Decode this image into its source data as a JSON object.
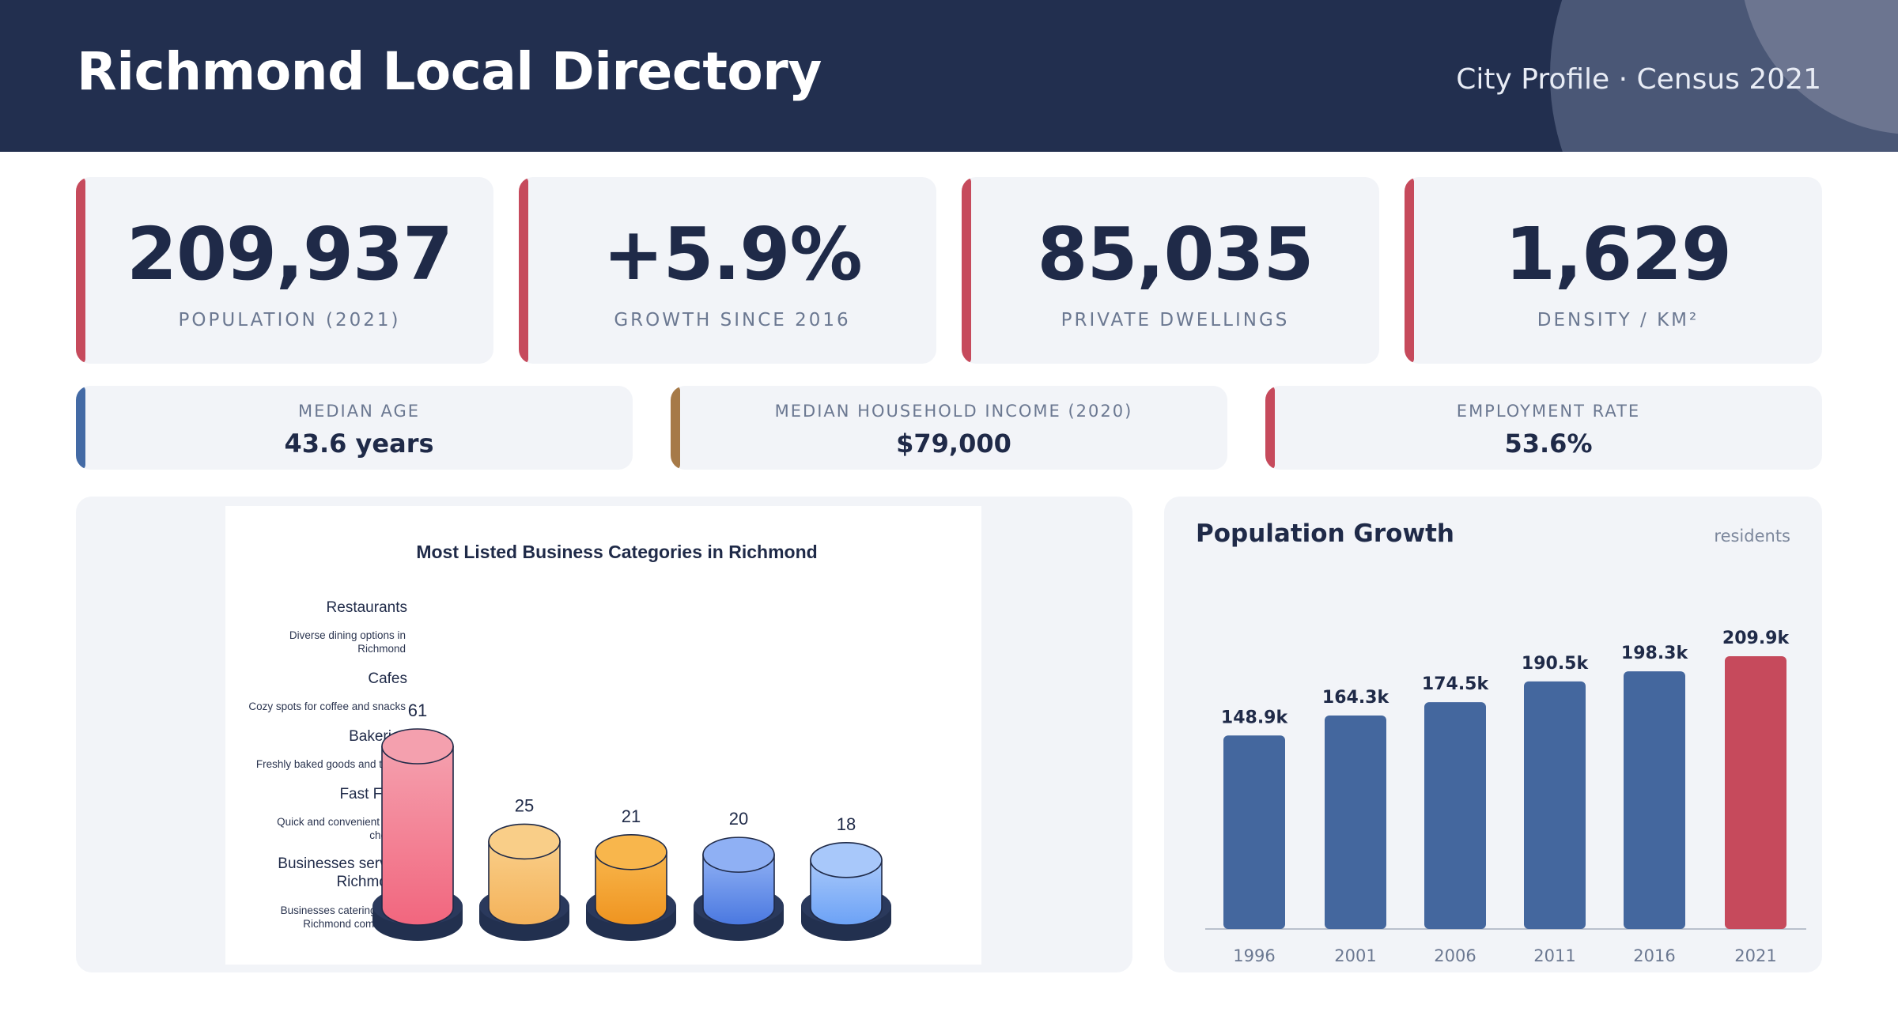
{
  "header": {
    "title": "Richmond Local Directory",
    "subtitle": "City Profile · Census 2021"
  },
  "kpis": [
    {
      "value": "209,937",
      "label": "POPULATION (2021)"
    },
    {
      "value": "+5.9%",
      "label": "GROWTH SINCE 2016"
    },
    {
      "value": "85,035",
      "label": "PRIVATE DWELLINGS"
    },
    {
      "value": "1,629",
      "label": "DENSITY / KM²"
    }
  ],
  "metrics": [
    {
      "label": "MEDIAN AGE",
      "value": "43.6 years",
      "accent": "#436aa5"
    },
    {
      "label": "MEDIAN HOUSEHOLD INCOME (2020)",
      "value": "$79,000",
      "accent": "#a67a48"
    },
    {
      "label": "EMPLOYMENT RATE",
      "value": "53.6%",
      "accent": "#c64a5c"
    }
  ],
  "chart_data": [
    {
      "type": "bar",
      "title": "Most Listed Business Categories in Richmond",
      "categories": [
        "Restaurants",
        "Cafes",
        "Bakeries",
        "Fast Food",
        "Businesses serving Richmond"
      ],
      "descriptions": [
        "Diverse dining options in Richmond",
        "Cozy spots for coffee and snacks",
        "Freshly baked goods and treats",
        "Quick and convenient meal choices",
        "Businesses catering to the Richmond community"
      ],
      "values": [
        61,
        25,
        21,
        20,
        18
      ],
      "colors": [
        [
          "#f4a0ae",
          "#f2667e"
        ],
        [
          "#f9ce88",
          "#f4b25a"
        ],
        [
          "#f8b64c",
          "#ef9420"
        ],
        [
          "#8fb0f4",
          "#4a78e0"
        ],
        [
          "#a8c8fa",
          "#6ca2f6"
        ]
      ],
      "base_color": "#22304f",
      "ylim": [
        0,
        61
      ]
    },
    {
      "type": "bar",
      "title": "Population Growth",
      "unit": "residents",
      "categories": [
        "1996",
        "2001",
        "2006",
        "2011",
        "2016",
        "2021"
      ],
      "values": [
        148.9,
        164.3,
        174.5,
        190.5,
        198.3,
        209.9
      ],
      "value_labels": [
        "148.9k",
        "164.3k",
        "174.5k",
        "190.5k",
        "198.3k",
        "209.9k"
      ],
      "bar_color": "#44679e",
      "highlight_color": "#c64a5c",
      "highlight_index": 5,
      "ylim": [
        0,
        209.9
      ]
    }
  ]
}
